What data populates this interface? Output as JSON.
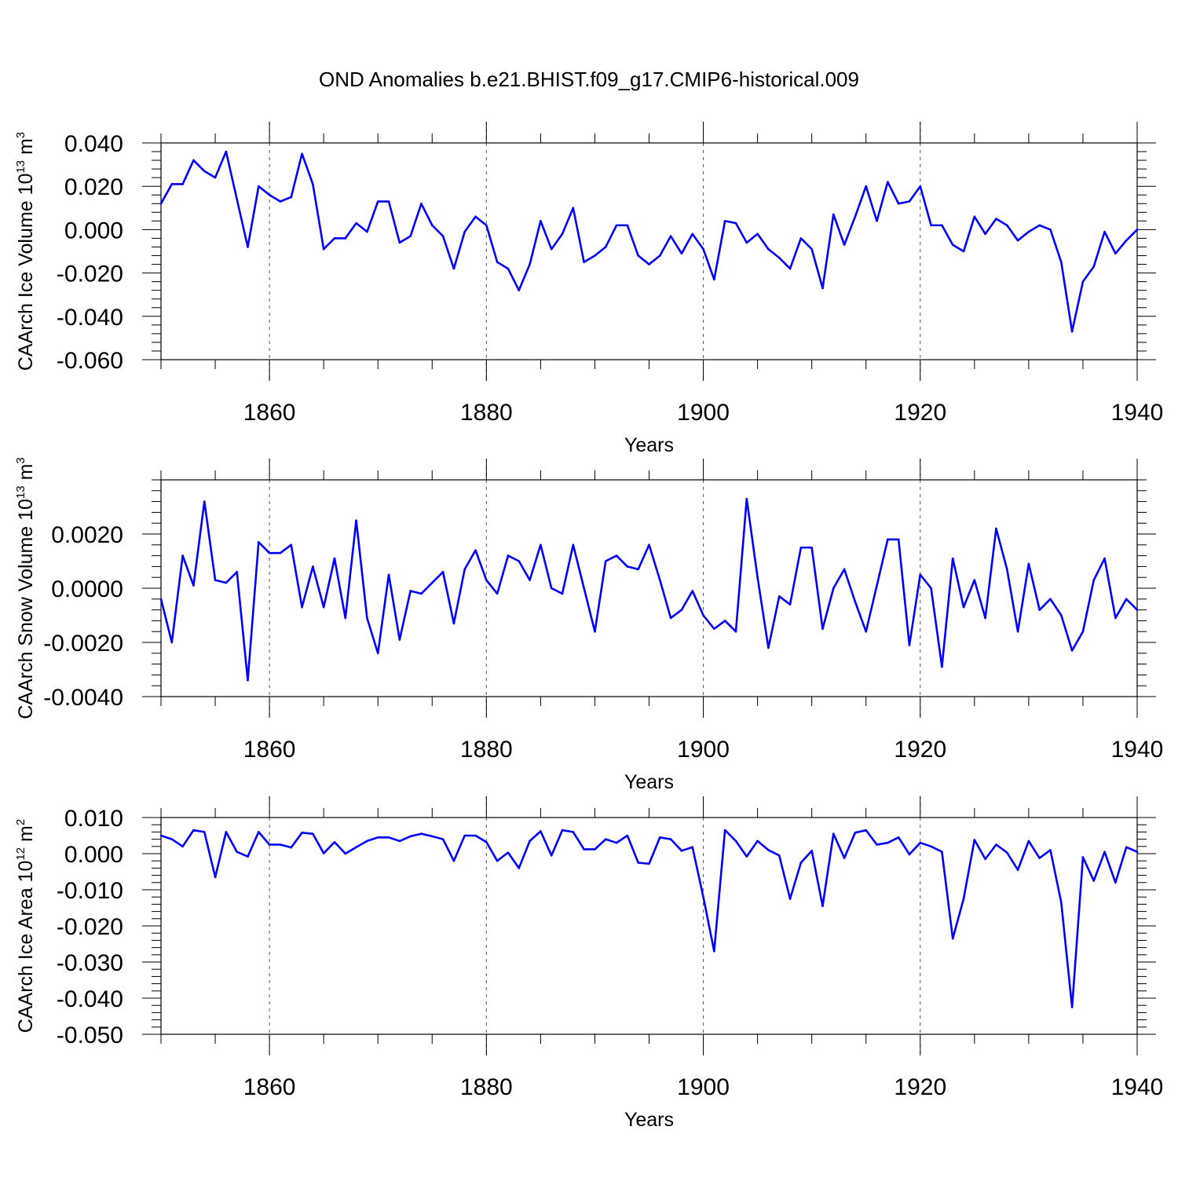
{
  "title": "OND Anomalies b.e21.BHIST.f09_g17.CMIP6-historical.009",
  "colors": {
    "series": "#0000ff",
    "axis": "#000000",
    "grid": "#555555"
  },
  "chart_data": [
    {
      "type": "line",
      "ylabel": {
        "text": "CAArch Ice Volume 10",
        "exp": "13",
        "unit": " m",
        "unit_exp": "3"
      },
      "xlabel": "Years",
      "xlim": [
        1850,
        1940
      ],
      "ylim": [
        -0.06,
        0.04
      ],
      "yticks": [
        0.04,
        0.02,
        0.0,
        -0.02,
        -0.04,
        -0.06
      ],
      "ytick_labels": [
        "0.040",
        "0.020",
        "0.000",
        "-0.020",
        "-0.040",
        "-0.060"
      ],
      "xticks": [
        1860,
        1880,
        1900,
        1920,
        1940
      ],
      "xtick_labels": [
        "1860",
        "1880",
        "1900",
        "1920",
        "1940"
      ],
      "grid": "dashed vertical at major x ticks",
      "x": [
        1850,
        1851,
        1852,
        1853,
        1854,
        1855,
        1856,
        1857,
        1858,
        1859,
        1860,
        1861,
        1862,
        1863,
        1864,
        1865,
        1866,
        1867,
        1868,
        1869,
        1870,
        1871,
        1872,
        1873,
        1874,
        1875,
        1876,
        1877,
        1878,
        1879,
        1880,
        1881,
        1882,
        1883,
        1884,
        1885,
        1886,
        1887,
        1888,
        1889,
        1890,
        1891,
        1892,
        1893,
        1894,
        1895,
        1896,
        1897,
        1898,
        1899,
        1900,
        1901,
        1902,
        1903,
        1904,
        1905,
        1906,
        1907,
        1908,
        1909,
        1910,
        1911,
        1912,
        1913,
        1914,
        1915,
        1916,
        1917,
        1918,
        1919,
        1920,
        1921,
        1922,
        1923,
        1924,
        1925,
        1926,
        1927,
        1928,
        1929,
        1930,
        1931,
        1932,
        1933,
        1934,
        1935,
        1936,
        1937,
        1938,
        1939,
        1940
      ],
      "series": [
        {
          "values": [
            0.012,
            0.021,
            0.021,
            0.032,
            0.027,
            0.024,
            0.036,
            0.014,
            -0.008,
            0.02,
            0.016,
            0.013,
            0.015,
            0.035,
            0.021,
            -0.009,
            -0.004,
            -0.004,
            0.003,
            -0.001,
            0.013,
            0.013,
            -0.006,
            -0.003,
            0.012,
            0.002,
            -0.003,
            -0.018,
            -0.001,
            0.006,
            0.002,
            -0.015,
            -0.018,
            -0.028,
            -0.016,
            0.004,
            -0.009,
            -0.002,
            0.01,
            -0.015,
            -0.012,
            -0.008,
            0.002,
            0.002,
            -0.012,
            -0.016,
            -0.012,
            -0.003,
            -0.011,
            -0.002,
            -0.009,
            -0.023,
            0.004,
            0.003,
            -0.006,
            -0.002,
            -0.009,
            -0.013,
            -0.018,
            -0.004,
            -0.009,
            -0.027,
            0.007,
            -0.007,
            0.006,
            0.02,
            0.004,
            0.022,
            0.012,
            0.013,
            0.02,
            0.002,
            0.002,
            -0.007,
            -0.01,
            0.006,
            -0.002,
            0.005,
            0.002,
            -0.005,
            -0.001,
            0.002,
            0.0,
            -0.015,
            -0.047,
            -0.024,
            -0.017,
            -0.001,
            -0.011,
            -0.005,
            0.0
          ]
        }
      ]
    },
    {
      "type": "line",
      "ylabel": {
        "text": "CAArch Snow Volume 10",
        "exp": "13",
        "unit": " m",
        "unit_exp": "3"
      },
      "xlabel": "Years",
      "xlim": [
        1850,
        1940
      ],
      "ylim": [
        -0.004,
        0.004
      ],
      "yticks": [
        0.002,
        0.0,
        -0.002,
        -0.004
      ],
      "ytick_labels": [
        "0.0020",
        "0.0000",
        "-0.0020",
        "-0.0040"
      ],
      "xticks": [
        1860,
        1880,
        1900,
        1920,
        1940
      ],
      "xtick_labels": [
        "1860",
        "1880",
        "1900",
        "1920",
        "1940"
      ],
      "grid": "dashed vertical at major x ticks",
      "x": [
        1850,
        1851,
        1852,
        1853,
        1854,
        1855,
        1856,
        1857,
        1858,
        1859,
        1860,
        1861,
        1862,
        1863,
        1864,
        1865,
        1866,
        1867,
        1868,
        1869,
        1870,
        1871,
        1872,
        1873,
        1874,
        1875,
        1876,
        1877,
        1878,
        1879,
        1880,
        1881,
        1882,
        1883,
        1884,
        1885,
        1886,
        1887,
        1888,
        1889,
        1890,
        1891,
        1892,
        1893,
        1894,
        1895,
        1896,
        1897,
        1898,
        1899,
        1900,
        1901,
        1902,
        1903,
        1904,
        1905,
        1906,
        1907,
        1908,
        1909,
        1910,
        1911,
        1912,
        1913,
        1914,
        1915,
        1916,
        1917,
        1918,
        1919,
        1920,
        1921,
        1922,
        1923,
        1924,
        1925,
        1926,
        1927,
        1928,
        1929,
        1930,
        1931,
        1932,
        1933,
        1934,
        1935,
        1936,
        1937,
        1938,
        1939,
        1940
      ],
      "series": [
        {
          "values": [
            -0.0004,
            -0.002,
            0.0012,
            0.0001,
            0.0032,
            0.0003,
            0.0002,
            0.0006,
            -0.0034,
            0.0017,
            0.0013,
            0.0013,
            0.0016,
            -0.0007,
            0.0008,
            -0.0007,
            0.0011,
            -0.0011,
            0.0025,
            -0.0011,
            -0.0024,
            0.0005,
            -0.0019,
            -0.0001,
            -0.0002,
            0.0002,
            0.0006,
            -0.0013,
            0.0007,
            0.0014,
            0.0003,
            -0.0002,
            0.0012,
            0.001,
            0.0003,
            0.0016,
            0.0,
            -0.0002,
            0.0016,
            0.0,
            -0.0016,
            0.001,
            0.0012,
            0.0008,
            0.0007,
            0.0016,
            0.0003,
            -0.0011,
            -0.0008,
            -0.0001,
            -0.001,
            -0.0015,
            -0.0012,
            -0.0016,
            0.0033,
            0.0004,
            -0.0022,
            -0.0003,
            -0.0006,
            0.0015,
            0.0015,
            -0.0015,
            0.0,
            0.0007,
            -0.0005,
            -0.0016,
            0.0001,
            0.0018,
            0.0018,
            -0.0021,
            0.0005,
            0.0,
            -0.0029,
            0.0011,
            -0.0007,
            0.0003,
            -0.0011,
            0.0022,
            0.0007,
            -0.0016,
            0.0009,
            -0.0008,
            -0.0004,
            -0.001,
            -0.0023,
            -0.0016,
            0.0003,
            0.0011,
            -0.0011,
            -0.0004,
            -0.0008
          ]
        }
      ]
    },
    {
      "type": "line",
      "ylabel": {
        "text": "CAArch Ice Area 10",
        "exp": "12",
        "unit": " m",
        "unit_exp": "2"
      },
      "xlabel": "Years",
      "xlim": [
        1850,
        1940
      ],
      "ylim": [
        -0.05,
        0.01
      ],
      "yticks": [
        0.01,
        0.0,
        -0.01,
        -0.02,
        -0.03,
        -0.04,
        -0.05
      ],
      "ytick_labels": [
        "0.010",
        "0.000",
        "-0.010",
        "-0.020",
        "-0.030",
        "-0.040",
        "-0.050"
      ],
      "xticks": [
        1860,
        1880,
        1900,
        1920,
        1940
      ],
      "xtick_labels": [
        "1860",
        "1880",
        "1900",
        "1920",
        "1940"
      ],
      "grid": "dashed vertical at major x ticks",
      "x": [
        1850,
        1851,
        1852,
        1853,
        1854,
        1855,
        1856,
        1857,
        1858,
        1859,
        1860,
        1861,
        1862,
        1863,
        1864,
        1865,
        1866,
        1867,
        1868,
        1869,
        1870,
        1871,
        1872,
        1873,
        1874,
        1875,
        1876,
        1877,
        1878,
        1879,
        1880,
        1881,
        1882,
        1883,
        1884,
        1885,
        1886,
        1887,
        1888,
        1889,
        1890,
        1891,
        1892,
        1893,
        1894,
        1895,
        1896,
        1897,
        1898,
        1899,
        1900,
        1901,
        1902,
        1903,
        1904,
        1905,
        1906,
        1907,
        1908,
        1909,
        1910,
        1911,
        1912,
        1913,
        1914,
        1915,
        1916,
        1917,
        1918,
        1919,
        1920,
        1921,
        1922,
        1923,
        1924,
        1925,
        1926,
        1927,
        1928,
        1929,
        1930,
        1931,
        1932,
        1933,
        1934,
        1935,
        1936,
        1937,
        1938,
        1939,
        1940
      ],
      "series": [
        {
          "values": [
            0.005,
            0.004,
            0.002,
            0.0065,
            0.006,
            -0.0065,
            0.006,
            0.0005,
            -0.0008,
            0.006,
            0.0025,
            0.0025,
            0.0017,
            0.0058,
            0.0055,
            0.0001,
            0.0032,
            0.0,
            0.0018,
            0.0035,
            0.0045,
            0.0045,
            0.0035,
            0.0048,
            0.0055,
            0.0048,
            0.004,
            -0.002,
            0.005,
            0.005,
            0.0032,
            -0.002,
            0.0003,
            -0.004,
            0.0035,
            0.0062,
            -0.0005,
            0.0065,
            0.006,
            0.0012,
            0.0012,
            0.004,
            0.003,
            0.005,
            -0.0025,
            -0.0028,
            0.0045,
            0.004,
            0.0008,
            0.0018,
            -0.012,
            -0.027,
            0.0065,
            0.0035,
            -0.0008,
            0.0035,
            0.001,
            -0.0005,
            -0.0125,
            -0.0025,
            0.0008,
            -0.0145,
            0.0055,
            -0.0012,
            0.0058,
            0.0065,
            0.0025,
            0.003,
            0.0045,
            -0.0002,
            0.003,
            0.002,
            0.0005,
            -0.0235,
            -0.0125,
            0.0038,
            -0.0015,
            0.0025,
            0.0003,
            -0.0045,
            0.0035,
            -0.0012,
            0.001,
            -0.0135,
            -0.0425,
            -0.001,
            -0.0075,
            0.0005,
            -0.008,
            0.0018,
            0.0005
          ]
        }
      ]
    }
  ]
}
